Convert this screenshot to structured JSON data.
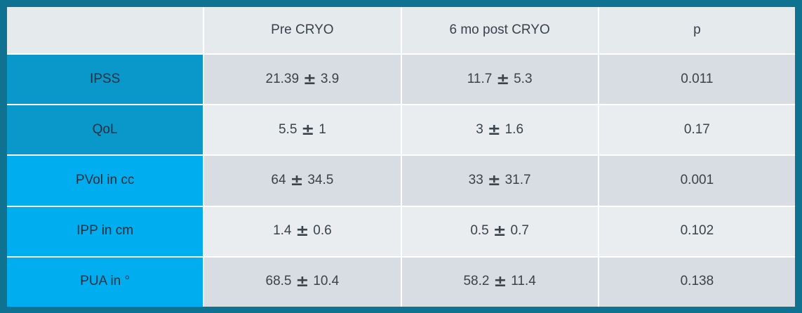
{
  "table": {
    "header": {
      "metric": "",
      "pre": "Pre CRYO",
      "post": "6 mo post CRYO",
      "p": "p"
    },
    "plus_minus": "±",
    "rows": [
      {
        "label": "IPSS",
        "pre_mean": "21.39",
        "pre_sd": "3.9",
        "post_mean": "11.7",
        "post_sd": "5.3",
        "p": "0.011",
        "header_shade": "dark"
      },
      {
        "label": "QoL",
        "pre_mean": "5.5",
        "pre_sd": "1",
        "post_mean": "3",
        "post_sd": "1.6",
        "p": "0.17",
        "header_shade": "dark"
      },
      {
        "label": "PVol in cc",
        "pre_mean": "64",
        "pre_sd": "34.5",
        "post_mean": "33",
        "post_sd": "31.7",
        "p": "0.001",
        "header_shade": "bright"
      },
      {
        "label": "IPP in cm",
        "pre_mean": "1.4",
        "pre_sd": "0.6",
        "post_mean": "0.5",
        "post_sd": "0.7",
        "p": "0.102",
        "header_shade": "bright"
      },
      {
        "label": "PUA in °",
        "pre_mean": "68.5",
        "pre_sd": "10.4",
        "post_mean": "58.2",
        "post_sd": "11.4",
        "p": "0.138",
        "header_shade": "bright"
      }
    ]
  },
  "colors": {
    "frame_border": "#0e7290",
    "row_header_dark": "#0a97c9",
    "row_header_bright": "#00adee",
    "column_header_bg": "#e5eaec",
    "band_dark": "#d8dde3",
    "band_light": "#e9edef"
  },
  "chart_data": {
    "type": "table",
    "columns": [
      "",
      "Pre CRYO",
      "6 mo post CRYO",
      "p"
    ],
    "rows": [
      [
        "IPSS",
        "21.39 ± 3.9",
        "11.7 ± 5.3",
        "0.011"
      ],
      [
        "QoL",
        "5.5 ± 1",
        "3 ± 1.6",
        "0.17"
      ],
      [
        "PVol in cc",
        "64 ± 34.5",
        "33 ± 31.7",
        "0.001"
      ],
      [
        "IPP in cm",
        "1.4 ± 0.6",
        "0.5 ± 0.7",
        "0.102"
      ],
      [
        "PUA in °",
        "68.5 ± 10.4",
        "58.2 ± 11.4",
        "0.138"
      ]
    ]
  }
}
